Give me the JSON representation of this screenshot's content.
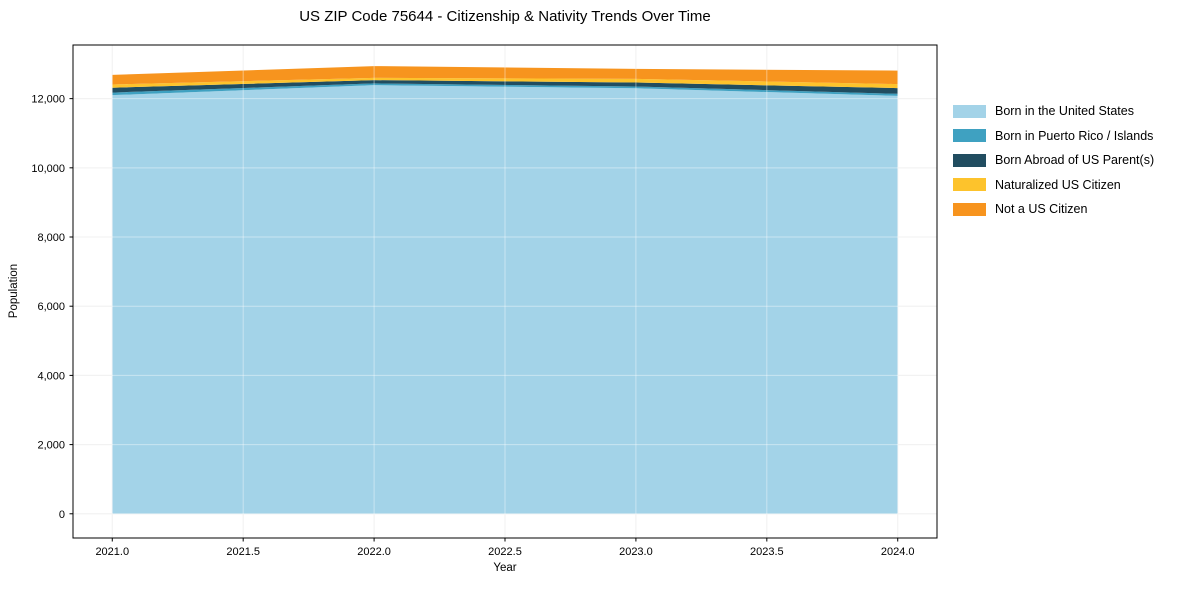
{
  "page": {
    "background": "#ffffff",
    "grid_color": "#e9e9e9",
    "frame_color": "#000000"
  },
  "chart_data": {
    "type": "area",
    "stacked": true,
    "title": "US ZIP Code 75644 - Citizenship & Nativity Trends Over Time",
    "xlabel": "Year",
    "ylabel": "Population",
    "x": [
      2021,
      2022,
      2023,
      2024
    ],
    "series": [
      {
        "name": "Born in the United States",
        "color": "#a3d3e8",
        "values": [
          12100,
          12390,
          12300,
          12080
        ]
      },
      {
        "name": "Born in Puerto Rico / Islands",
        "color": "#3fa1c1",
        "values": [
          75,
          50,
          50,
          60
        ]
      },
      {
        "name": "Born Abroad of US Parent(s)",
        "color": "#214d60",
        "values": [
          140,
          95,
          115,
          165
        ]
      },
      {
        "name": "Naturalized US Citizen",
        "color": "#fdc32c",
        "values": [
          95,
          65,
          105,
          115
        ]
      },
      {
        "name": "Not a US Citizen",
        "color": "#f7941e",
        "values": [
          275,
          340,
          290,
          390
        ]
      }
    ],
    "totals": [
      12685,
      12940,
      12860,
      12810
    ],
    "xlim": [
      2020.85,
      2024.15
    ],
    "ylim": [
      -700,
      13550
    ],
    "xticks": [
      2021.0,
      2021.5,
      2022.0,
      2022.5,
      2023.0,
      2023.5,
      2024.0
    ],
    "xtick_labels": [
      "2021.0",
      "2021.5",
      "2022.0",
      "2022.5",
      "2023.0",
      "2023.5",
      "2024.0"
    ],
    "yticks": [
      0,
      2000,
      4000,
      6000,
      8000,
      10000,
      12000
    ],
    "ytick_labels": [
      "0",
      "2,000",
      "4,000",
      "6,000",
      "8,000",
      "10,000",
      "12,000"
    ],
    "grid": true,
    "legend_position": "right-outside"
  }
}
